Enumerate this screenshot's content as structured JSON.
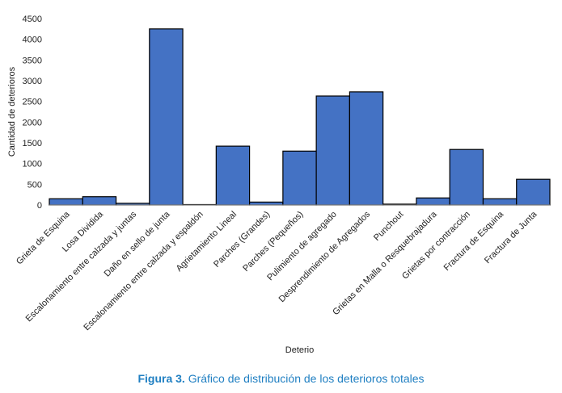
{
  "chart_data": {
    "type": "bar",
    "xlabel": "Deterio",
    "ylabel": "Cantidad de deterioros",
    "ylim": [
      0,
      4500
    ],
    "yticks": [
      0,
      500,
      1000,
      1500,
      2000,
      2500,
      3000,
      3500,
      4000,
      4500
    ],
    "grid": false,
    "categories": [
      "Grieta de Esquina",
      "Losa Dividida",
      "Escalonamiento entre calzada y juntas",
      "Daño en sello de junta",
      "Escalonamiento entre calzada y espaldón",
      "Agrietamiento Lineal",
      "Parches (Grandes)",
      "Parches (Pequeños)",
      "Pulimiento de agregado",
      "Desprendimiento de Agregados",
      "Punchout",
      "Grietas en Malla o Resquebrajadura",
      "Grietas por contracción",
      "Fractura de Esquina",
      "Fractura de Junta"
    ],
    "values": [
      150,
      200,
      40,
      4250,
      10,
      1420,
      70,
      1300,
      2630,
      2730,
      20,
      170,
      1340,
      150,
      620
    ],
    "bar_color": "#4472c4"
  },
  "caption": {
    "label": "Figura 3.",
    "text": "Gráfico de distribución de los deterioros totales"
  }
}
